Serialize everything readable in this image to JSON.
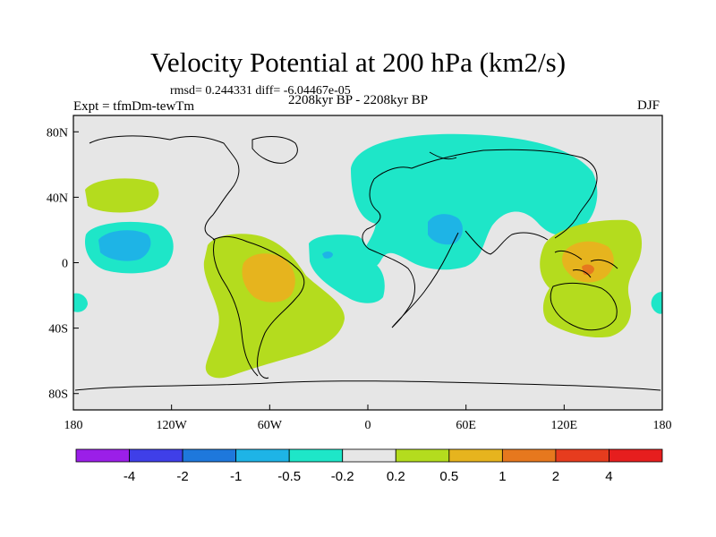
{
  "chart_data": {
    "type": "heatmap",
    "title": "Velocity Potential at 200 hPa (km2/s)",
    "stats_line": "rmsd= 0.244331  diff= -6.04467e-05",
    "left_label": "Expt = tfmDm-tewTm",
    "center_label": "2208kyr BP - 2208kyr BP",
    "right_label": "DJF",
    "x_range": [
      -180,
      180
    ],
    "y_range": [
      -90,
      90
    ],
    "x_ticks": [
      {
        "value": -180,
        "label": "180"
      },
      {
        "value": -120,
        "label": "120W"
      },
      {
        "value": -60,
        "label": "60W"
      },
      {
        "value": 0,
        "label": "0"
      },
      {
        "value": 60,
        "label": "60E"
      },
      {
        "value": 120,
        "label": "120E"
      },
      {
        "value": 180,
        "label": "180"
      }
    ],
    "y_ticks": [
      {
        "value": 80,
        "label": "80N"
      },
      {
        "value": 40,
        "label": "40N"
      },
      {
        "value": 0,
        "label": "0"
      },
      {
        "value": -40,
        "label": "40S"
      },
      {
        "value": -80,
        "label": "80S"
      }
    ],
    "colorbar": {
      "colors": [
        "#9b1fe8",
        "#3f3fe8",
        "#1e78dc",
        "#1eb4e6",
        "#1ee6c8",
        "#e6e6e6",
        "#b4dc1e",
        "#e6b41e",
        "#e6781e",
        "#e63c1e",
        "#e61e1e"
      ],
      "levels": [
        "-4",
        "-2",
        "-1",
        "-0.5",
        "-0.2",
        "0.2",
        "0.5",
        "1",
        "2",
        "4"
      ]
    },
    "regions": [
      {
        "name": "eurasia-asia-negative",
        "level": "-0.5 to -0.2",
        "lon_range": [
          -10,
          150
        ],
        "lat_range": [
          -10,
          80
        ]
      },
      {
        "name": "arabia-negative-core",
        "level": "-1 to -0.5",
        "lon_range": [
          35,
          60
        ],
        "lat_range": [
          15,
          35
        ]
      },
      {
        "name": "tropical-atlantic-negative",
        "level": "-0.5 to -0.2",
        "lon_range": [
          -45,
          0
        ],
        "lat_range": [
          -25,
          20
        ]
      },
      {
        "name": "east-pacific-negative",
        "level": "-0.5 to -0.2",
        "lon_range": [
          -170,
          -130
        ],
        "lat_range": [
          -5,
          25
        ]
      },
      {
        "name": "east-pacific-negative-core",
        "level": "-1 to -0.5",
        "lon_range": [
          -165,
          -140
        ],
        "lat_range": [
          0,
          20
        ]
      },
      {
        "name": "south-america-positive",
        "level": "0.2 to 0.5",
        "lon_range": [
          -95,
          -15
        ],
        "lat_range": [
          -70,
          20
        ]
      },
      {
        "name": "amazon-positive-core",
        "level": "0.5 to 1",
        "lon_range": [
          -75,
          -50
        ],
        "lat_range": [
          -20,
          5
        ]
      },
      {
        "name": "maritime-continent-positive",
        "level": "0.2 to 0.5",
        "lon_range": [
          110,
          165
        ],
        "lat_range": [
          -45,
          30
        ]
      },
      {
        "name": "maritime-continent-positive-core",
        "level": "0.5 to 1",
        "lon_range": [
          120,
          150
        ],
        "lat_range": [
          -10,
          15
        ]
      },
      {
        "name": "north-pacific-positive",
        "level": "0.2 to 0.5",
        "lon_range": [
          -165,
          -135
        ],
        "lat_range": [
          30,
          55
        ]
      }
    ]
  }
}
